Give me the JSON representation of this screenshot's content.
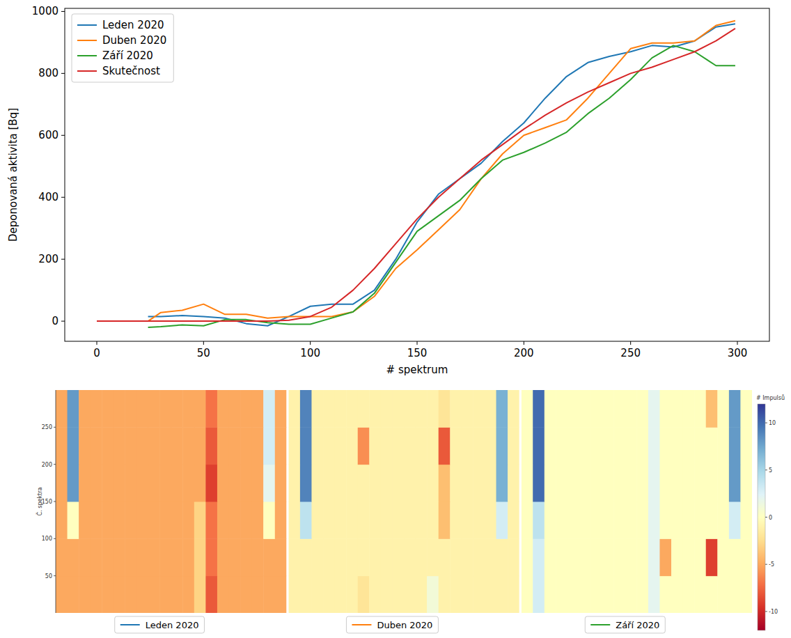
{
  "chart_data": [
    {
      "type": "line",
      "x_label": "# spektrum",
      "y_label": "Deponovaná aktivita [Bq]",
      "x": [
        0,
        10,
        20,
        24,
        30,
        40,
        50,
        60,
        70,
        80,
        90,
        100,
        110,
        120,
        130,
        140,
        150,
        160,
        170,
        180,
        190,
        200,
        210,
        220,
        230,
        240,
        250,
        260,
        270,
        280,
        290,
        299
      ],
      "xlim": [
        -15,
        315
      ],
      "xticks": [
        0,
        50,
        100,
        150,
        200,
        250,
        300
      ],
      "ylim": [
        -65,
        1010
      ],
      "yticks": [
        0,
        200,
        400,
        600,
        800,
        1000
      ],
      "grid": false,
      "legend": "upper left",
      "series": [
        {
          "name": "Leden 2020",
          "color": "#1f77b4",
          "values": [
            null,
            null,
            null,
            15,
            15,
            18,
            15,
            10,
            -8,
            -15,
            15,
            48,
            55,
            55,
            100,
            200,
            320,
            410,
            460,
            510,
            580,
            640,
            720,
            790,
            835,
            855,
            870,
            890,
            885,
            905,
            950,
            960
          ]
        },
        {
          "name": "Duben 2020",
          "color": "#ff7f0e",
          "values": [
            null,
            null,
            null,
            0,
            28,
            35,
            55,
            22,
            22,
            10,
            15,
            15,
            15,
            30,
            80,
            170,
            230,
            295,
            360,
            460,
            540,
            600,
            625,
            650,
            720,
            800,
            880,
            898,
            898,
            905,
            955,
            970
          ]
        },
        {
          "name": "Září 2020",
          "color": "#2ca02c",
          "values": [
            null,
            null,
            null,
            -20,
            -18,
            -12,
            -15,
            5,
            5,
            -5,
            -10,
            -10,
            10,
            30,
            90,
            190,
            290,
            340,
            390,
            460,
            520,
            545,
            575,
            610,
            670,
            720,
            780,
            850,
            890,
            870,
            825,
            825
          ]
        },
        {
          "name": "Skutečnost",
          "color": "#d62728",
          "values": [
            0,
            0,
            0,
            0,
            0,
            0,
            0,
            0,
            0,
            0,
            3,
            15,
            45,
            100,
            170,
            250,
            330,
            400,
            460,
            520,
            570,
            620,
            665,
            705,
            740,
            770,
            800,
            820,
            845,
            870,
            905,
            945
          ]
        }
      ]
    },
    {
      "type": "heatmap",
      "y_label": "Č. spektra",
      "ylim": [
        0,
        300
      ],
      "yticks": [
        50,
        100,
        150,
        200,
        250
      ],
      "y_edges": [
        0,
        50,
        100,
        150,
        200,
        250,
        300
      ],
      "tick_labels": "y",
      "colorbar_label": "# Impulsů",
      "colorbar_range": [
        -12,
        12
      ],
      "colorbar_ticks": [
        -10,
        -5,
        0,
        5,
        10
      ],
      "panels": [
        {
          "name": "Leden 2020",
          "color": "#1f77b4",
          "cells": [
            [
              -5,
              -5,
              -5,
              -5,
              -5,
              -5,
              -5,
              -5,
              -5,
              -5,
              -5,
              -5,
              -3,
              -8,
              -5,
              -5,
              -5,
              -5,
              -5,
              -5
            ],
            [
              -5,
              -5,
              -5,
              -5,
              -5,
              -5,
              -5,
              -5,
              -5,
              -5,
              -5,
              -5,
              -3,
              -7,
              -5,
              -5,
              -5,
              -5,
              -5,
              -5
            ],
            [
              -5,
              0,
              -5,
              -5,
              -5,
              -5,
              -5,
              -5,
              -5,
              -5,
              -5,
              -5,
              -3,
              -7,
              -5,
              -5,
              -5,
              -5,
              0,
              -5
            ],
            [
              -5,
              8,
              -5,
              -5,
              -5,
              -5,
              -5,
              -5,
              -5,
              -5,
              -5,
              -5,
              -5,
              -9,
              -5,
              -5,
              -5,
              -5,
              2,
              -5
            ],
            [
              -5,
              8,
              -5,
              -5,
              -5,
              -5,
              -5,
              -5,
              -5,
              -5,
              -5,
              -5,
              -5,
              -8,
              -5,
              -5,
              -5,
              -5,
              3,
              -5
            ],
            [
              -5,
              8,
              -5,
              -5,
              -5,
              -5,
              -5,
              -5,
              -5,
              -5,
              -5,
              -5,
              -5,
              -7,
              -5,
              -5,
              -5,
              -5,
              3,
              -5
            ]
          ]
        },
        {
          "name": "Duben 2020",
          "color": "#ff7f0e",
          "cells": [
            [
              -1,
              -1,
              -1,
              -1,
              -1,
              -1,
              -2,
              -1,
              -1,
              -1,
              -1,
              -1,
              1,
              -1,
              -1,
              -1,
              -1,
              -1,
              -1,
              -1
            ],
            [
              -1,
              -1,
              -1,
              -1,
              -1,
              -1,
              -1,
              -1,
              -1,
              -1,
              -1,
              -1,
              -1,
              -1,
              -1,
              -1,
              -1,
              -1,
              -1,
              -1
            ],
            [
              -1,
              4,
              -1,
              -1,
              -1,
              -1,
              -1,
              -1,
              -1,
              -1,
              -1,
              -1,
              -1,
              -4,
              -1,
              -1,
              -1,
              -1,
              3,
              -1
            ],
            [
              -1,
              9,
              -1,
              -1,
              -1,
              -1,
              -1,
              -1,
              -1,
              -1,
              -1,
              -1,
              -1,
              -4,
              -1,
              -1,
              -1,
              -1,
              7,
              -1
            ],
            [
              -1,
              9,
              -1,
              -1,
              -1,
              -1,
              -6,
              -1,
              -1,
              -1,
              -1,
              -1,
              -1,
              -8,
              -1,
              -1,
              -1,
              -1,
              7,
              -1
            ],
            [
              -1,
              9,
              -1,
              -1,
              -1,
              -1,
              -1,
              -1,
              -1,
              -1,
              -1,
              -1,
              -1,
              -2,
              -1,
              -1,
              -1,
              -1,
              7,
              -1
            ]
          ]
        },
        {
          "name": "Září 2020",
          "color": "#2ca02c",
          "cells": [
            [
              0,
              3,
              0,
              0,
              0,
              0,
              0,
              0,
              0,
              0,
              0,
              2,
              0,
              0,
              0,
              0,
              0,
              0,
              0,
              0
            ],
            [
              0,
              3,
              0,
              0,
              0,
              0,
              0,
              0,
              0,
              0,
              0,
              2,
              -5,
              0,
              0,
              0,
              -9,
              0,
              0,
              0
            ],
            [
              0,
              4,
              0,
              0,
              0,
              0,
              0,
              0,
              0,
              0,
              0,
              2,
              0,
              0,
              0,
              0,
              0,
              0,
              3,
              0
            ],
            [
              0,
              10,
              0,
              0,
              0,
              0,
              0,
              0,
              0,
              0,
              0,
              2,
              0,
              0,
              0,
              0,
              0,
              0,
              8,
              0
            ],
            [
              0,
              10,
              0,
              0,
              0,
              0,
              0,
              0,
              0,
              0,
              0,
              2,
              0,
              0,
              0,
              0,
              0,
              0,
              8,
              0
            ],
            [
              0,
              10,
              0,
              0,
              0,
              0,
              0,
              0,
              0,
              0,
              0,
              2,
              0,
              0,
              0,
              0,
              -4,
              0,
              8,
              0
            ]
          ]
        }
      ]
    }
  ]
}
